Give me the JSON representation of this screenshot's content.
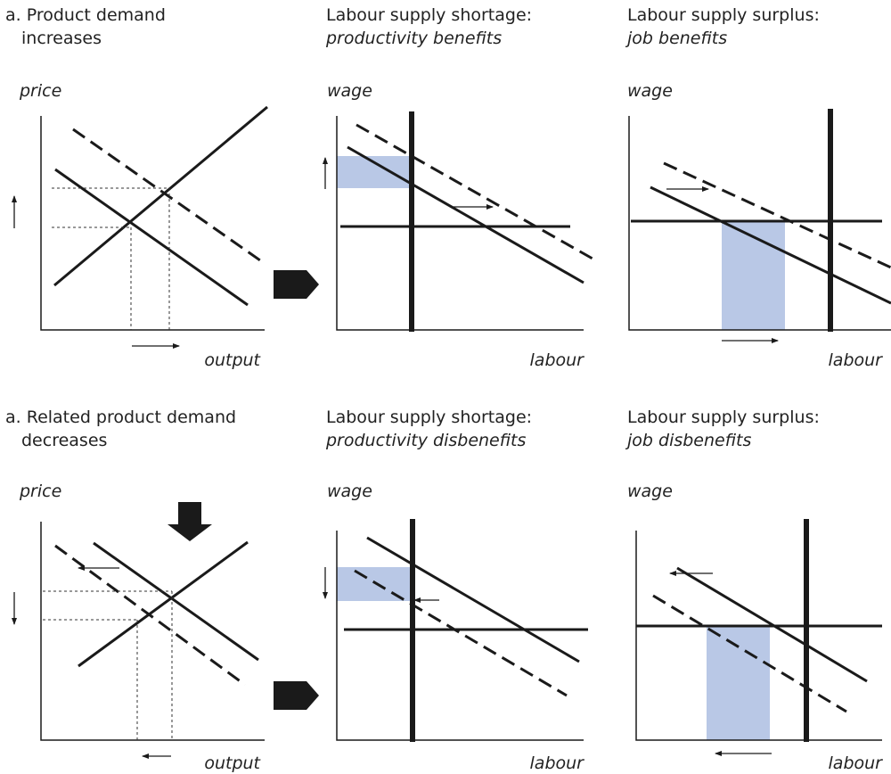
{
  "colors": {
    "ink": "#1a1a1a",
    "shade": "#b9c8e6"
  },
  "rows": [
    {
      "panel1": {
        "title_lines": [
          "a. Product demand",
          "increases"
        ],
        "ylabel": "price",
        "xlabel": "output"
      },
      "panel2": {
        "title": "Labour supply shortage:",
        "subtitle": "productivity benefits",
        "ylabel": "wage",
        "xlabel": "labour"
      },
      "panel3": {
        "title": "Labour supply surplus:",
        "subtitle": "job benefits",
        "ylabel": "wage",
        "xlabel": "labour"
      }
    },
    {
      "panel1": {
        "title_lines": [
          "a. Related product demand",
          "decreases"
        ],
        "ylabel": "price",
        "xlabel": "output"
      },
      "panel2": {
        "title": "Labour supply shortage:",
        "subtitle": "productivity disbenefits",
        "ylabel": "wage",
        "xlabel": "labour"
      },
      "panel3": {
        "title": "Labour supply surplus:",
        "subtitle": "job disbenefits",
        "ylabel": "wage",
        "xlabel": "labour"
      }
    }
  ]
}
